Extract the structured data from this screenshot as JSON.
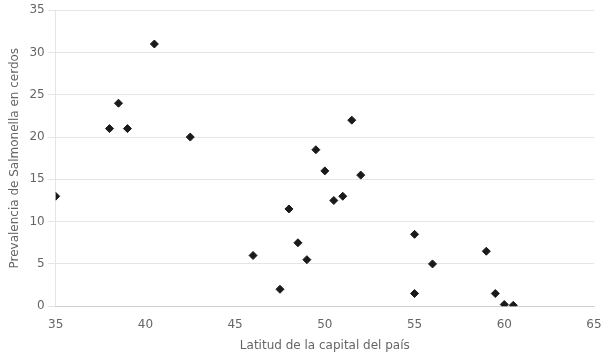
{
  "chart_data": {
    "type": "scatter",
    "x": [
      35,
      38,
      38.5,
      39,
      40.5,
      42.5,
      46,
      47.5,
      48,
      48.5,
      49,
      49.5,
      50,
      50.5,
      51,
      51.5,
      52,
      55,
      55,
      56,
      59,
      59.5,
      60,
      60.5
    ],
    "values": [
      13,
      21,
      24,
      21,
      31,
      20,
      6,
      2,
      11.5,
      7.5,
      5.5,
      18.5,
      16,
      12.5,
      13,
      22,
      15.5,
      1.5,
      8.5,
      5,
      6.5,
      1.5,
      0.2,
      0.1
    ],
    "xlabel": "Latitud de la capital del país",
    "ylabel": "Prevalencia de Salmonella en cerdos",
    "xlim": [
      35,
      65
    ],
    "ylim": [
      0,
      35
    ],
    "xticks": [
      35,
      40,
      45,
      50,
      55,
      60,
      65
    ],
    "yticks": [
      0,
      5,
      10,
      15,
      20,
      25,
      30,
      35
    ],
    "color": "#1a1a1a",
    "marker": "diamond",
    "grid": "y"
  }
}
